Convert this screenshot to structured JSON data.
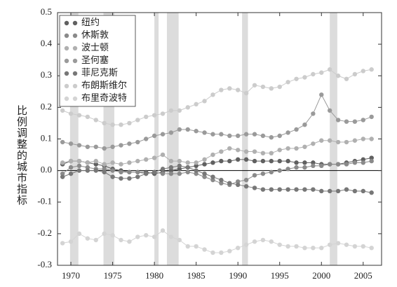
{
  "chart_data": {
    "type": "line",
    "y_label": "比例调整的城市指标",
    "x": [
      1969,
      1970,
      1971,
      1972,
      1973,
      1974,
      1975,
      1976,
      1977,
      1978,
      1979,
      1980,
      1981,
      1982,
      1983,
      1984,
      1985,
      1986,
      1987,
      1988,
      1989,
      1990,
      1991,
      1992,
      1993,
      1994,
      1995,
      1996,
      1997,
      1998,
      1999,
      2000,
      2001,
      2002,
      2003,
      2004,
      2005,
      2006
    ],
    "xlim": [
      1968.4,
      2007.2
    ],
    "xticks": [
      1970,
      1975,
      1980,
      1985,
      1990,
      1995,
      2000,
      2005
    ],
    "ylim": [
      -0.3,
      0.5
    ],
    "yticks": [
      -0.3,
      -0.2,
      -0.1,
      {
        "value": 0,
        "label": "0.0"
      },
      0.1,
      0.2,
      0.3,
      0.4,
      0.5
    ],
    "shaded_periods": [
      [
        1969.9,
        1970.9
      ],
      [
        1973.9,
        1975.2
      ],
      [
        1980.0,
        1980.5
      ],
      [
        1981.5,
        1982.9
      ],
      [
        1990.5,
        1991.2
      ],
      [
        2001.0,
        2001.9
      ]
    ],
    "shade_color": "#dcdcdc",
    "legend": "upper left",
    "series": [
      {
        "name": "纽约",
        "color": "#606060",
        "values": [
          0.02,
          0.03,
          0.03,
          0.025,
          0.02,
          0.015,
          0.005,
          0.0,
          -0.005,
          -0.005,
          -0.005,
          -0.01,
          -0.005,
          0.0,
          0.005,
          0.01,
          0.015,
          0.02,
          0.025,
          0.03,
          0.03,
          0.035,
          0.035,
          0.03,
          0.03,
          0.03,
          0.03,
          0.03,
          0.025,
          0.025,
          0.025,
          0.02,
          0.02,
          0.02,
          0.025,
          0.03,
          0.035,
          0.04
        ]
      },
      {
        "name": "休斯敦",
        "color": "#8a8a8a",
        "values": [
          -0.01,
          0.01,
          0.015,
          0.01,
          0.005,
          0.005,
          0.0,
          -0.005,
          -0.005,
          -0.005,
          -0.01,
          -0.005,
          -0.01,
          -0.01,
          -0.01,
          -0.005,
          -0.01,
          -0.02,
          -0.03,
          -0.04,
          -0.045,
          -0.035,
          -0.03,
          -0.015,
          -0.01,
          -0.005,
          0.0,
          0.005,
          0.01,
          0.01,
          0.015,
          0.015,
          0.02,
          0.02,
          0.02,
          0.025,
          0.025,
          0.03
        ]
      },
      {
        "name": "波士顿",
        "color": "#b0b0b0",
        "values": [
          0.025,
          0.03,
          0.03,
          0.025,
          0.03,
          0.02,
          0.025,
          0.02,
          0.025,
          0.03,
          0.035,
          0.04,
          0.05,
          0.03,
          0.03,
          0.025,
          0.025,
          0.035,
          0.05,
          0.06,
          0.07,
          0.065,
          0.06,
          0.06,
          0.055,
          0.055,
          0.065,
          0.07,
          0.07,
          0.075,
          0.085,
          0.095,
          0.095,
          0.09,
          0.09,
          0.095,
          0.1,
          0.1
        ]
      },
      {
        "name": "圣何塞",
        "color": "#9a9a9a",
        "values": [
          0.09,
          0.085,
          0.08,
          0.075,
          0.075,
          0.07,
          0.075,
          0.08,
          0.085,
          0.09,
          0.1,
          0.11,
          0.115,
          0.12,
          0.13,
          0.13,
          0.125,
          0.12,
          0.115,
          0.115,
          0.11,
          0.11,
          0.115,
          0.115,
          0.11,
          0.105,
          0.11,
          0.12,
          0.13,
          0.145,
          0.18,
          0.24,
          0.19,
          0.16,
          0.155,
          0.155,
          0.16,
          0.17
        ]
      },
      {
        "name": "菲尼克斯",
        "color": "#777777",
        "values": [
          -0.02,
          -0.01,
          0.0,
          0.0,
          0.0,
          -0.005,
          -0.02,
          -0.025,
          -0.025,
          -0.02,
          -0.01,
          -0.005,
          0.005,
          0.01,
          0.015,
          0.01,
          0.0,
          -0.01,
          -0.02,
          -0.03,
          -0.04,
          -0.045,
          -0.05,
          -0.055,
          -0.06,
          -0.06,
          -0.06,
          -0.06,
          -0.06,
          -0.06,
          -0.06,
          -0.065,
          -0.065,
          -0.065,
          -0.06,
          -0.065,
          -0.065,
          -0.07
        ]
      },
      {
        "name": "布朗斯维尔",
        "color": "#cccccc",
        "values": [
          0.19,
          0.18,
          0.175,
          0.17,
          0.16,
          0.15,
          0.145,
          0.145,
          0.15,
          0.16,
          0.17,
          0.175,
          0.18,
          0.19,
          0.19,
          0.2,
          0.21,
          0.22,
          0.24,
          0.255,
          0.26,
          0.255,
          0.245,
          0.27,
          0.265,
          0.26,
          0.265,
          0.28,
          0.29,
          0.295,
          0.305,
          0.31,
          0.32,
          0.3,
          0.29,
          0.305,
          0.315,
          0.32
        ]
      },
      {
        "name": "布里奇波特",
        "color": "#d4d4d4",
        "values": [
          -0.23,
          -0.225,
          -0.2,
          -0.215,
          -0.22,
          -0.2,
          -0.205,
          -0.22,
          -0.225,
          -0.21,
          -0.205,
          -0.21,
          -0.19,
          -0.21,
          -0.22,
          -0.24,
          -0.24,
          -0.25,
          -0.26,
          -0.26,
          -0.255,
          -0.245,
          -0.235,
          -0.225,
          -0.22,
          -0.225,
          -0.235,
          -0.24,
          -0.24,
          -0.245,
          -0.245,
          -0.245,
          -0.235,
          -0.23,
          -0.235,
          -0.24,
          -0.24,
          -0.245
        ]
      }
    ]
  }
}
